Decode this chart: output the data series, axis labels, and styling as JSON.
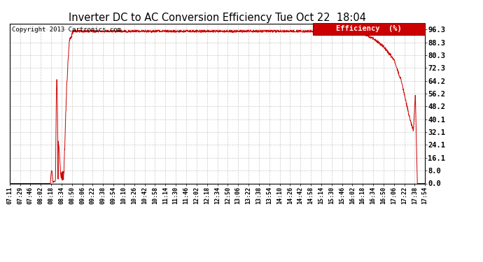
{
  "title": "Inverter DC to AC Conversion Efficiency Tue Oct 22  18:04",
  "copyright": "Copyright 2013 Cartronics.com",
  "legend_label": "Efficiency  (%)",
  "legend_bg": "#cc0000",
  "line_color": "#cc0000",
  "bg_color": "#ffffff",
  "plot_bg_color": "#ffffff",
  "grid_color": "#bbbbbb",
  "yticks": [
    0.0,
    8.0,
    16.1,
    24.1,
    32.1,
    40.1,
    48.2,
    56.2,
    64.2,
    72.3,
    80.3,
    88.3,
    96.3
  ],
  "xtick_labels": [
    "07:11",
    "07:29",
    "07:46",
    "08:02",
    "08:18",
    "08:34",
    "08:50",
    "09:06",
    "09:22",
    "09:38",
    "09:54",
    "10:10",
    "10:26",
    "10:42",
    "10:58",
    "11:14",
    "11:30",
    "11:46",
    "12:02",
    "12:18",
    "12:34",
    "12:50",
    "13:06",
    "13:22",
    "13:38",
    "13:54",
    "14:10",
    "14:26",
    "14:42",
    "14:58",
    "15:14",
    "15:30",
    "15:46",
    "16:02",
    "16:18",
    "16:34",
    "16:50",
    "17:06",
    "17:22",
    "17:38",
    "17:54"
  ],
  "figsize": [
    6.9,
    3.75
  ],
  "dpi": 100
}
